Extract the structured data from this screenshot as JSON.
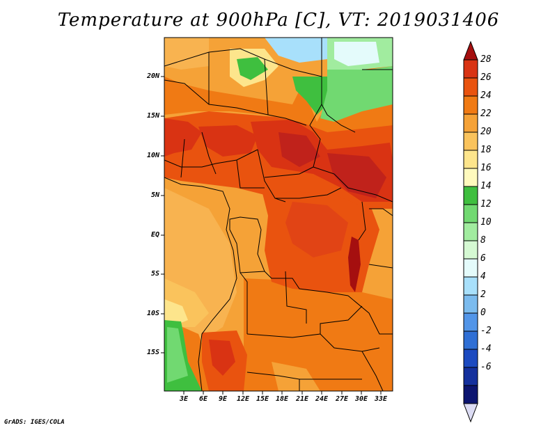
{
  "title": "Temperature at 900hPa [C], VT: 2019031406",
  "credit": "GrADS: IGES/COLA",
  "lat_labels": [
    "20N",
    "15N",
    "10N",
    "5N",
    "EQ",
    "5S",
    "10S",
    "15S"
  ],
  "lon_labels": [
    "3E",
    "6E",
    "9E",
    "12E",
    "15E",
    "18E",
    "21E",
    "24E",
    "27E",
    "30E",
    "33E"
  ],
  "colorbar": {
    "labels": [
      "28",
      "26",
      "24",
      "22",
      "20",
      "18",
      "16",
      "14",
      "12",
      "10",
      "8",
      "6",
      "4",
      "2",
      "0",
      "-2",
      "-4",
      "-6"
    ],
    "colors": [
      "#a50f0f",
      "#d93313",
      "#e9530f",
      "#f07a14",
      "#f5a237",
      "#fac35c",
      "#fde58c",
      "#fffabd",
      "#3fbf3f",
      "#71d971",
      "#a1ec9f",
      "#d5f9d3",
      "#e4fbfb",
      "#a8e0fb",
      "#7bbbee",
      "#5295e8",
      "#2f6fd5",
      "#1c4ac0",
      "#14309d",
      "#0c1570",
      "#dcdcf4"
    ]
  }
}
